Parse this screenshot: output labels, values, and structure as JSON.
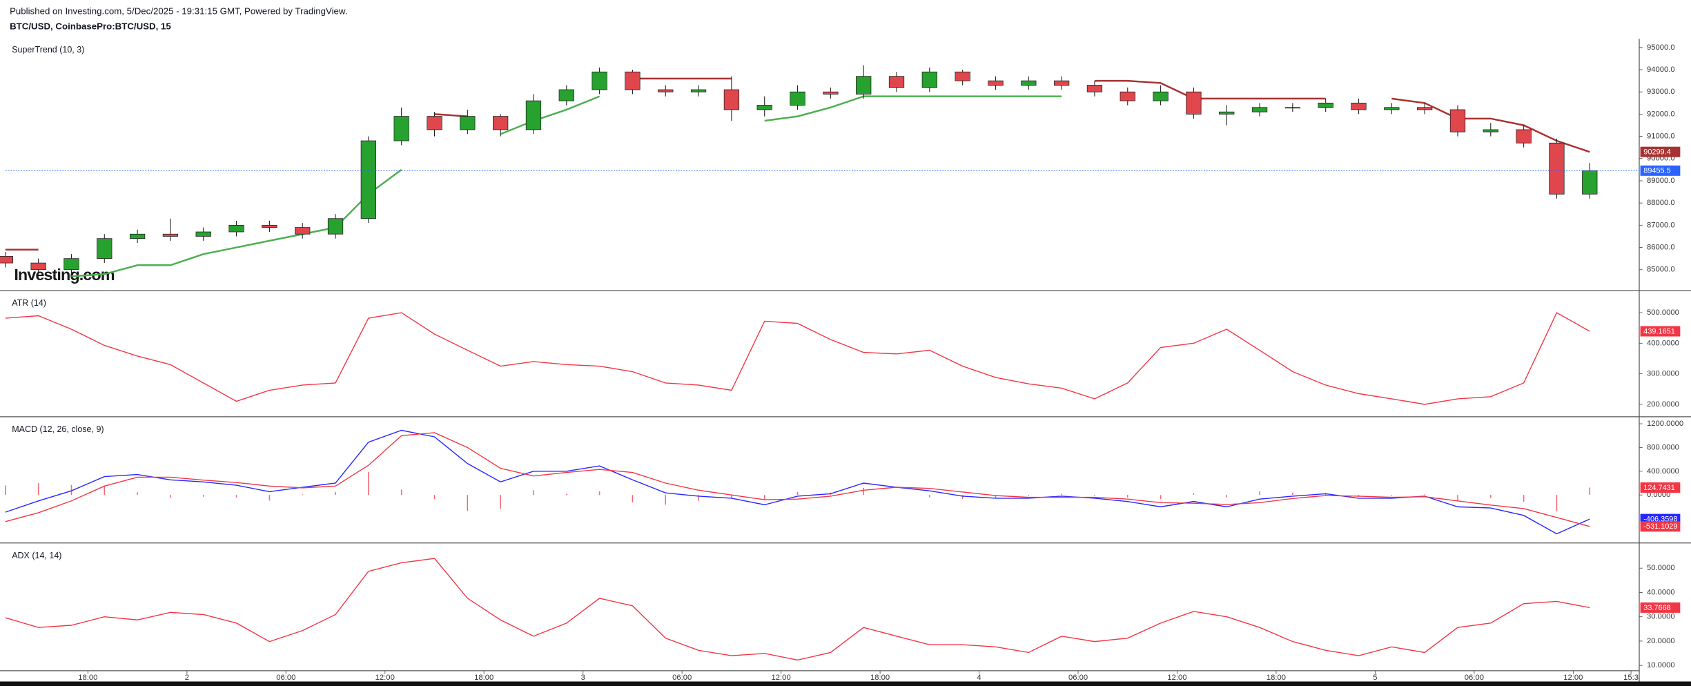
{
  "header": {
    "published": "Published on Investing.com, 5/Dec/2025 - 19:31:15 GMT, Powered by TradingView.",
    "symbol": "BTC/USD, CoinbasePro:BTC/USD, 15"
  },
  "watermark": "Investing.com",
  "chart_data": [
    {
      "type": "candlestick",
      "title": "SuperTrend (10, 3)",
      "x": [
        0,
        2,
        4,
        6,
        8,
        10,
        12,
        14,
        16,
        18,
        20,
        22,
        24,
        26,
        28,
        30,
        32,
        34,
        36,
        38,
        40,
        42,
        44,
        46,
        48,
        50,
        52,
        54,
        56,
        58,
        60,
        62,
        64,
        66,
        68,
        70,
        72,
        74,
        76,
        78,
        80,
        82,
        84,
        86,
        88,
        90,
        92,
        94,
        96
      ],
      "open": [
        85600,
        85300,
        85000,
        85500,
        86400,
        86600,
        86500,
        86700,
        87000,
        86900,
        86600,
        87300,
        90800,
        91900,
        91300,
        91900,
        91300,
        92600,
        93100,
        93900,
        93100,
        93000,
        93100,
        92200,
        92400,
        93000,
        92900,
        93700,
        93200,
        93900,
        93500,
        93300,
        93500,
        93300,
        93000,
        92600,
        93000,
        92000,
        92100,
        92300,
        92300,
        92500,
        92200,
        92300,
        92200,
        91200,
        91300,
        90700,
        88400
      ],
      "high": [
        85800,
        85500,
        85700,
        86600,
        86800,
        87300,
        86900,
        87200,
        87200,
        87100,
        87500,
        91000,
        92300,
        92100,
        92200,
        92000,
        92900,
        93300,
        94100,
        94000,
        93300,
        93300,
        93700,
        92800,
        93300,
        93200,
        94200,
        93900,
        94100,
        94000,
        93700,
        93700,
        93700,
        93500,
        93200,
        93300,
        93200,
        92400,
        92500,
        92500,
        92700,
        92700,
        92500,
        92500,
        92400,
        91600,
        91500,
        90900,
        89800
      ],
      "low": [
        85100,
        84800,
        84800,
        85300,
        86200,
        86300,
        86300,
        86500,
        86700,
        86400,
        86400,
        87100,
        90600,
        91000,
        91100,
        91000,
        91100,
        92400,
        92900,
        92900,
        92800,
        92800,
        91700,
        91900,
        92200,
        92700,
        92700,
        93000,
        93000,
        93300,
        93100,
        93100,
        93100,
        92800,
        92400,
        92400,
        91800,
        91500,
        91900,
        92100,
        92100,
        92000,
        92000,
        92000,
        91000,
        91000,
        90500,
        88200,
        88200
      ],
      "close": [
        85300,
        85000,
        85500,
        86400,
        86600,
        86500,
        86700,
        87000,
        86900,
        86600,
        87300,
        90800,
        91900,
        91300,
        91900,
        91300,
        92600,
        93100,
        93900,
        93100,
        93000,
        93100,
        92200,
        92400,
        93000,
        92900,
        93700,
        93200,
        93900,
        93500,
        93300,
        93500,
        93300,
        93000,
        92600,
        93000,
        92000,
        92100,
        92300,
        92300,
        92500,
        92200,
        92300,
        92200,
        91200,
        91300,
        90700,
        88400,
        89455.5
      ],
      "up_color": "#27a22f",
      "down_color": "#e0474c",
      "price_line_color": "#2962ff",
      "series": [
        {
          "color": "#4caf50",
          "values": [
            null,
            null,
            84700,
            84800,
            85200,
            85200,
            85700,
            86000,
            86300,
            86600,
            86900,
            88400,
            89500,
            null,
            null,
            91100,
            91700,
            92200,
            92800,
            null,
            null,
            null,
            null,
            91700,
            91900,
            92300,
            92800,
            92800,
            92800,
            92800,
            92800,
            92800,
            92800,
            null,
            null,
            null,
            null,
            null,
            null,
            null,
            null,
            92100,
            null,
            null,
            null,
            null,
            null,
            null,
            null
          ]
        },
        {
          "color": "#a83232",
          "values": [
            85900,
            85900,
            null,
            null,
            null,
            null,
            null,
            null,
            null,
            null,
            null,
            null,
            null,
            92000,
            91900,
            null,
            null,
            null,
            null,
            93600,
            93600,
            93600,
            93600,
            null,
            null,
            null,
            null,
            null,
            null,
            null,
            null,
            null,
            null,
            93500,
            93500,
            93400,
            92700,
            92700,
            92700,
            92700,
            92700,
            null,
            92700,
            92500,
            91800,
            91800,
            91500,
            90800,
            90299.4
          ]
        }
      ],
      "xlim": [
        0,
        99
      ],
      "ylim": [
        84130,
        95390
      ],
      "yticks": [
        {
          "value": 85000,
          "label": "85000.0"
        },
        {
          "value": 86000,
          "label": "86000.0"
        },
        {
          "value": 87000,
          "label": "87000.0"
        },
        {
          "value": 88000,
          "label": "88000.0"
        },
        {
          "value": 89000,
          "label": "89000.0"
        },
        {
          "value": 90000,
          "label": "90000.0"
        },
        {
          "value": 91000,
          "label": "91000.0"
        },
        {
          "value": 92000,
          "label": "92000.0"
        },
        {
          "value": 93000,
          "label": "93000.0"
        },
        {
          "value": 94000,
          "label": "94000.0"
        },
        {
          "value": 95000,
          "label": "95000.0"
        }
      ]
    },
    {
      "type": "line",
      "title": "ATR (14)",
      "x": [
        0,
        2,
        4,
        6,
        8,
        10,
        12,
        14,
        16,
        18,
        20,
        22,
        24,
        26,
        28,
        30,
        32,
        34,
        36,
        38,
        40,
        42,
        44,
        46,
        48,
        50,
        52,
        54,
        56,
        58,
        60,
        62,
        64,
        66,
        68,
        70,
        72,
        74,
        76,
        78,
        80,
        82,
        84,
        86,
        88,
        90,
        92,
        94,
        96
      ],
      "series": [
        {
          "color": "#f23645",
          "values": [
            482,
            490,
            446,
            393,
            358,
            330,
            270,
            210,
            246,
            263,
            270,
            482,
            500,
            430,
            377,
            325,
            340,
            330,
            325,
            307,
            270,
            263,
            246,
            472,
            465,
            412,
            370,
            365,
            377,
            325,
            288,
            267,
            253,
            218,
            270,
            386,
            400,
            446,
            377,
            307,
            263,
            235,
            218,
            200,
            218,
            225,
            270,
            500,
            439.1651
          ]
        }
      ],
      "xlim": [
        0,
        99
      ],
      "ylim": [
        161,
        567
      ],
      "yticks": [
        {
          "value": 200,
          "label": "200.0000"
        },
        {
          "value": 300,
          "label": "300.0000"
        },
        {
          "value": 400,
          "label": "400.0000"
        },
        {
          "value": 500,
          "label": "500.0000"
        }
      ]
    },
    {
      "type": "line",
      "title": "MACD (12, 26, close, 9)",
      "x": [
        0,
        2,
        4,
        6,
        8,
        10,
        12,
        14,
        16,
        18,
        20,
        22,
        24,
        26,
        28,
        30,
        32,
        34,
        36,
        38,
        40,
        42,
        44,
        46,
        48,
        50,
        52,
        54,
        56,
        58,
        60,
        62,
        64,
        66,
        68,
        70,
        72,
        74,
        76,
        78,
        80,
        82,
        84,
        86,
        88,
        90,
        92,
        94,
        96
      ],
      "series": [
        {
          "type": "bar",
          "color": "#f23645",
          "values": [
            160,
            200,
            170,
            160,
            45,
            -45,
            -30,
            -45,
            -95,
            10,
            50,
            390,
            90,
            -70,
            -270,
            -230,
            80,
            20,
            60,
            -125,
            -165,
            -100,
            -55,
            -85,
            50,
            40,
            120,
            0,
            -40,
            -70,
            -45,
            -15,
            20,
            -15,
            -40,
            -70,
            30,
            -40,
            60,
            40,
            30,
            -35,
            -15,
            10,
            -100,
            -50,
            -115,
            -275,
            124.7431
          ]
        },
        {
          "color": "#2626ff",
          "values": [
            -290,
            -100,
            70,
            310,
            345,
            255,
            220,
            165,
            55,
            130,
            200,
            890,
            1090,
            980,
            530,
            220,
            400,
            400,
            490,
            255,
            35,
            -20,
            -55,
            -165,
            -20,
            20,
            200,
            130,
            70,
            -20,
            -55,
            -55,
            -20,
            -55,
            -110,
            -200,
            -110,
            -200,
            -70,
            -20,
            20,
            -55,
            -55,
            -20,
            -200,
            -220,
            -345,
            -655,
            -406.3598
          ]
        },
        {
          "color": "#f23645",
          "values": [
            -450,
            -300,
            -100,
            150,
            300,
            300,
            250,
            210,
            150,
            120,
            150,
            500,
            1000,
            1050,
            800,
            450,
            320,
            380,
            430,
            380,
            200,
            80,
            0,
            -80,
            -70,
            -20,
            80,
            130,
            110,
            50,
            -10,
            -40,
            -40,
            -40,
            -70,
            -130,
            -140,
            -160,
            -130,
            -60,
            -10,
            -20,
            -40,
            -30,
            -100,
            -170,
            -230,
            -380,
            -531.1029
          ]
        }
      ],
      "xlim": [
        0,
        99
      ],
      "ylim": [
        -800,
        1291
      ],
      "yticks": [
        {
          "value": 0,
          "label": "0.0000"
        },
        {
          "value": 400,
          "label": "400.0000"
        },
        {
          "value": 800,
          "label": "800.0000"
        },
        {
          "value": 1200,
          "label": "1200.0000"
        }
      ]
    },
    {
      "type": "line",
      "title": "ADX (14, 14)",
      "x": [
        0,
        2,
        4,
        6,
        8,
        10,
        12,
        14,
        16,
        18,
        20,
        22,
        24,
        26,
        28,
        30,
        32,
        34,
        36,
        38,
        40,
        42,
        44,
        46,
        48,
        50,
        52,
        54,
        56,
        58,
        60,
        62,
        64,
        66,
        68,
        70,
        72,
        74,
        76,
        78,
        80,
        82,
        84,
        86,
        88,
        90,
        92,
        94,
        96
      ],
      "series": [
        {
          "color": "#f23645",
          "values": [
            29.6,
            25.6,
            26.5,
            30,
            28.7,
            31.8,
            30.9,
            27.4,
            19.8,
            24.3,
            30.9,
            48.7,
            52.2,
            54,
            37.6,
            28.7,
            22,
            27.4,
            37.6,
            34.5,
            21.2,
            16.2,
            14,
            14.9,
            12.2,
            15.3,
            25.6,
            22,
            18.5,
            18.5,
            17.6,
            15.3,
            22,
            19.8,
            21.2,
            27.4,
            32.2,
            30,
            25.6,
            19.8,
            16.2,
            14,
            17.6,
            15.3,
            25.6,
            27.4,
            35.4,
            36.3,
            33.7668
          ]
        }
      ],
      "xlim": [
        0,
        99
      ],
      "ylim": [
        7.8,
        59.7
      ],
      "yticks": [
        {
          "value": 10,
          "label": "10.0000"
        },
        {
          "value": 20,
          "label": "20.0000"
        },
        {
          "value": 30,
          "label": "30.0000"
        },
        {
          "value": 40,
          "label": "40.0000"
        },
        {
          "value": 50,
          "label": "50.0000"
        }
      ],
      "xticks": [
        {
          "value": 5,
          "label": "18:00"
        },
        {
          "value": 11,
          "label": "2"
        },
        {
          "value": 17,
          "label": "06:00"
        },
        {
          "value": 23,
          "label": "12:00"
        },
        {
          "value": 29,
          "label": "18:00"
        },
        {
          "value": 35,
          "label": "3"
        },
        {
          "value": 41,
          "label": "06:00"
        },
        {
          "value": 47,
          "label": "12:00"
        },
        {
          "value": 53,
          "label": "18:00"
        },
        {
          "value": 59,
          "label": "4"
        },
        {
          "value": 65,
          "label": "06:00"
        },
        {
          "value": 71,
          "label": "12:00"
        },
        {
          "value": 77,
          "label": "18:00"
        },
        {
          "value": 83,
          "label": "5"
        },
        {
          "value": 89,
          "label": "06:00"
        },
        {
          "value": 95,
          "label": "12:00"
        },
        {
          "value": 98.5,
          "label": "15:3"
        }
      ]
    }
  ]
}
